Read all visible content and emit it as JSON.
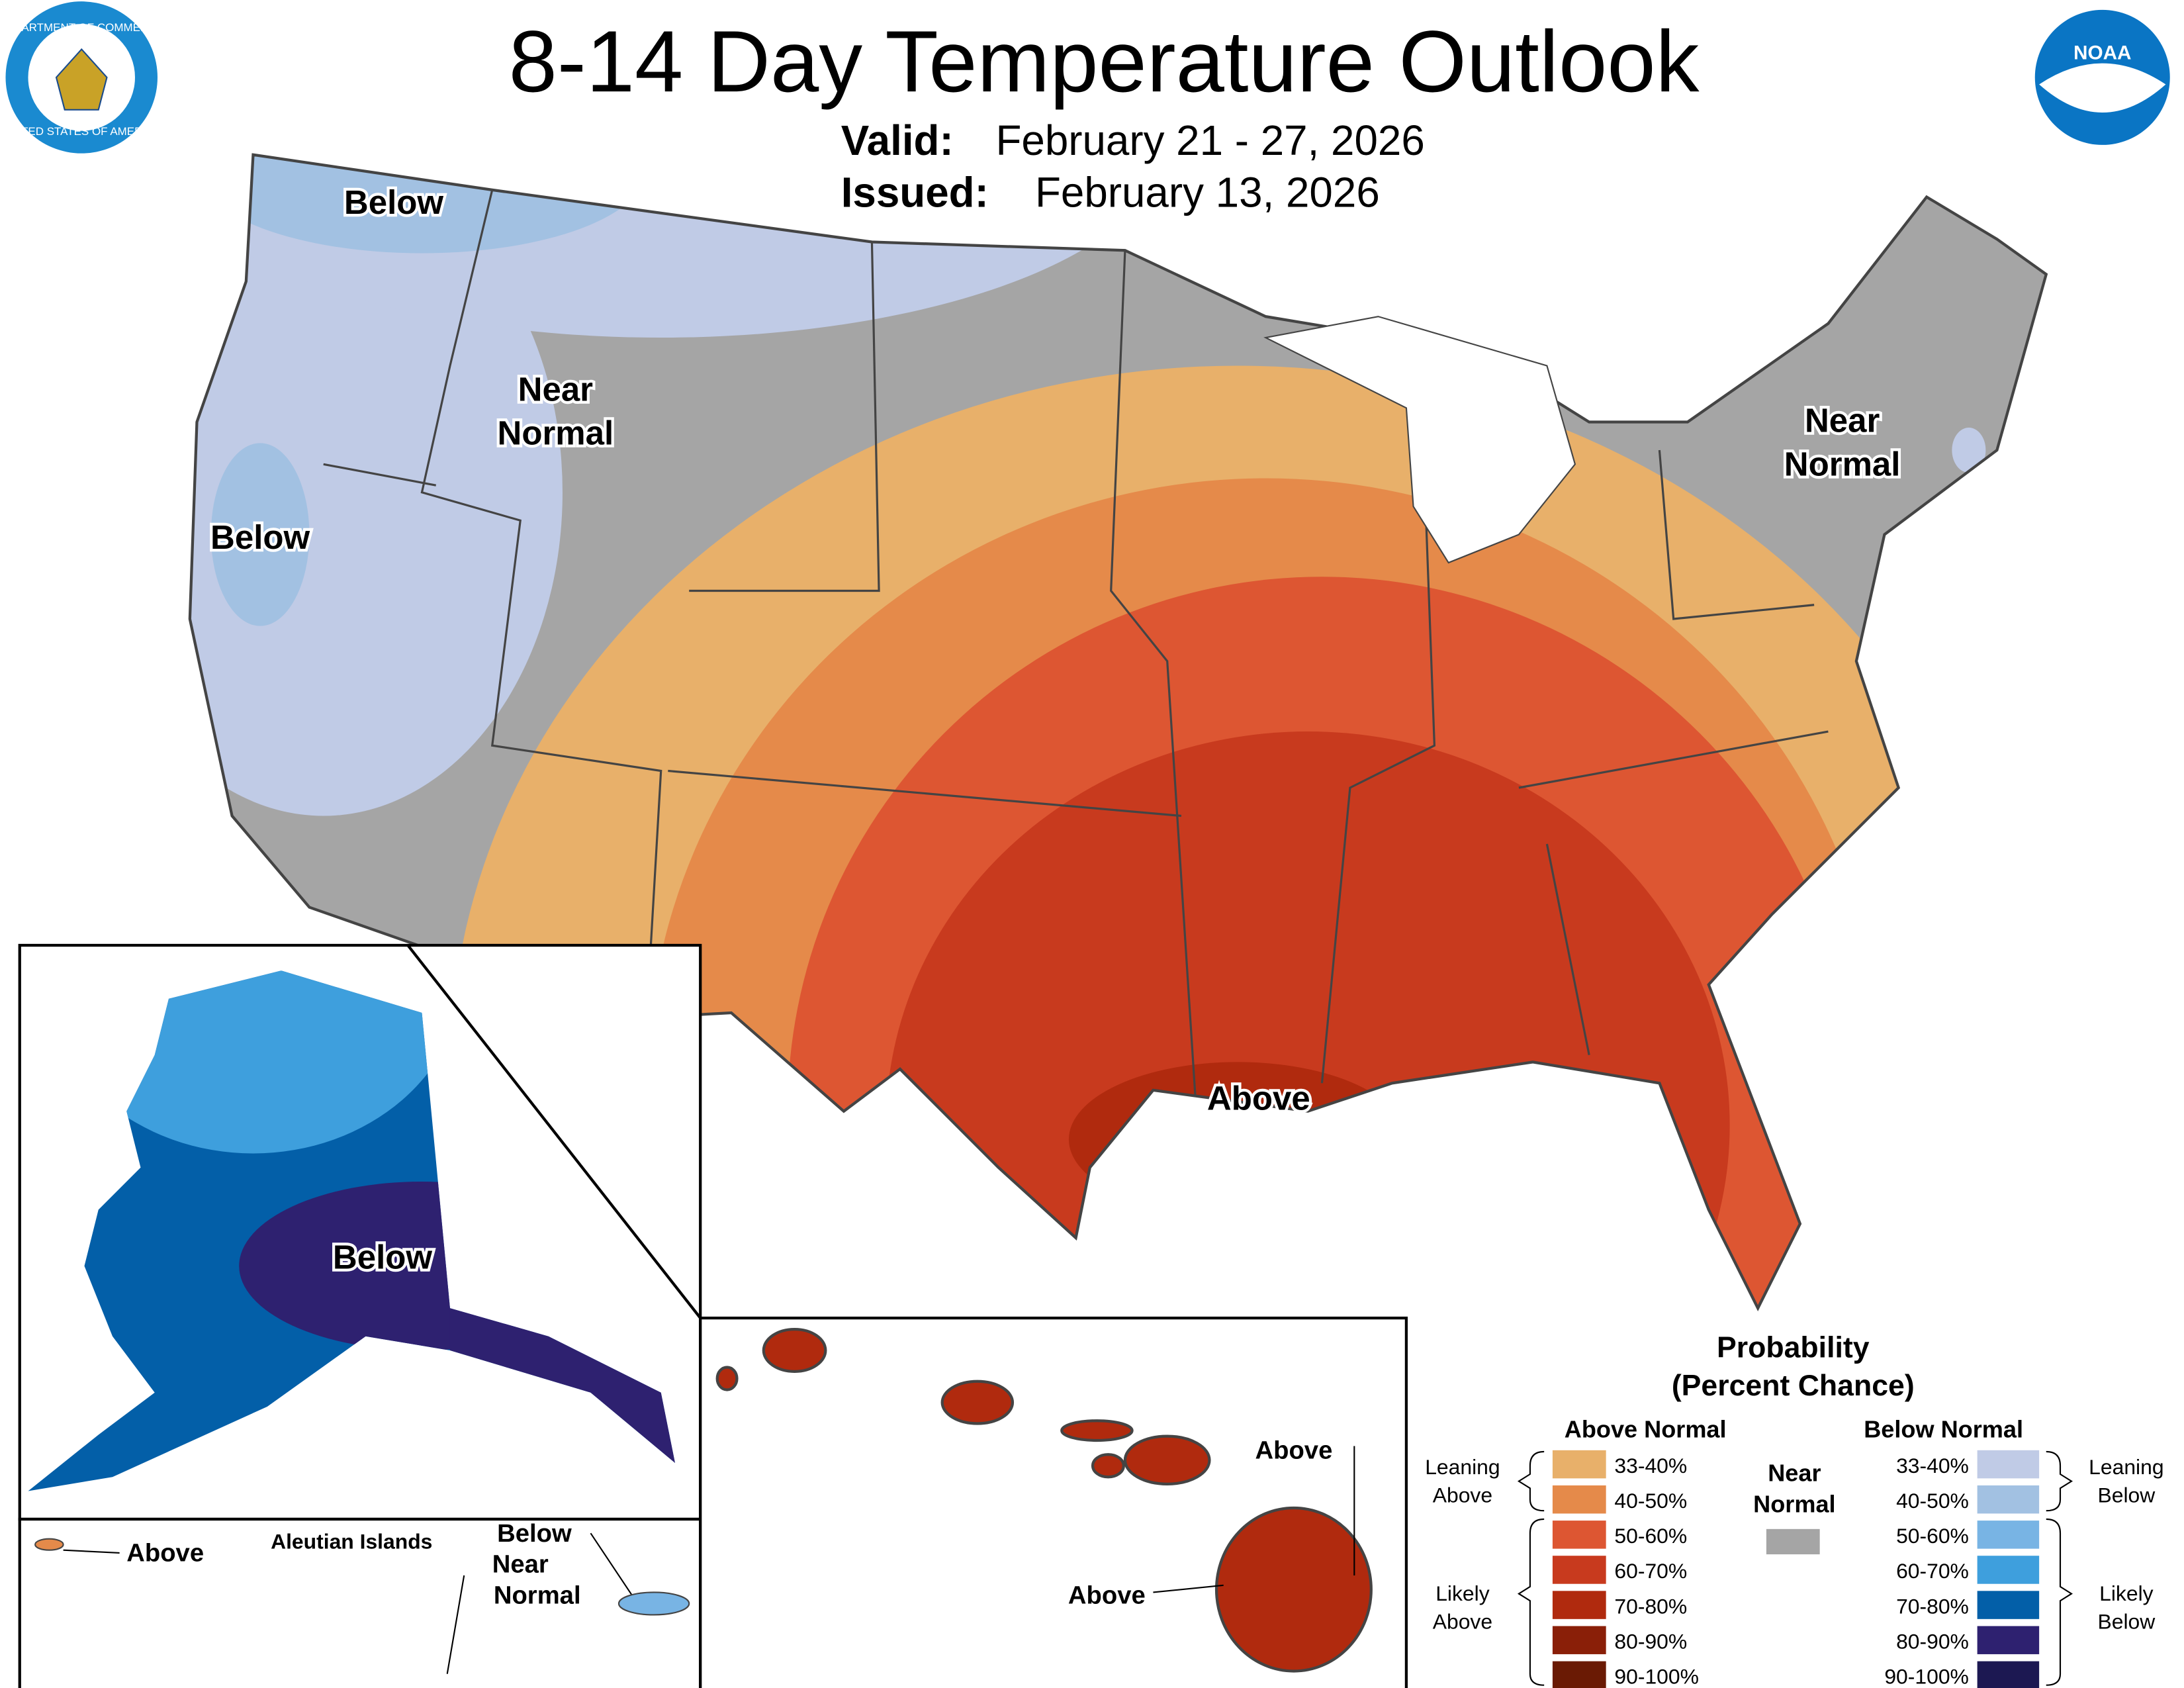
{
  "header": {
    "title": "8-14 Day Temperature Outlook",
    "valid_label": "Valid:",
    "valid_value": "February 21 - 27, 2026",
    "issued_label": "Issued:",
    "issued_value": "February 13, 2026"
  },
  "logos": {
    "commerce_top": "DEPARTMENT OF COMMERCE",
    "commerce_bottom": "UNITED STATES OF AMERICA",
    "noaa": "NOAA"
  },
  "map_labels": {
    "wa_below": "Below",
    "west_near": [
      "Near",
      "Normal"
    ],
    "ca_below": "Below",
    "ne_near": [
      "Near",
      "Normal"
    ],
    "gulf_above": "Above",
    "alaska_below": "Below",
    "aleutian_title": "Aleutian Islands",
    "aleutian_above": "Above",
    "aleutian_below_near": [
      "Below",
      "Near",
      "Normal"
    ],
    "hawaii_above_1": "Above",
    "hawaii_above_2": "Above"
  },
  "legend": {
    "title": [
      "Probability",
      "(Percent Chance)"
    ],
    "above_header": "Above Normal",
    "below_header": "Below Normal",
    "near": [
      "Near",
      "Normal"
    ],
    "near_color": "#a5a5a5",
    "above": [
      {
        "label": "33-40%",
        "color": "#e8b06a"
      },
      {
        "label": "40-50%",
        "color": "#e58a4a"
      },
      {
        "label": "50-60%",
        "color": "#dd5632"
      },
      {
        "label": "60-70%",
        "color": "#c83a1e"
      },
      {
        "label": "70-80%",
        "color": "#b02a0e"
      },
      {
        "label": "80-90%",
        "color": "#8a1f08"
      },
      {
        "label": "90-100%",
        "color": "#6a1a04"
      }
    ],
    "below": [
      {
        "label": "33-40%",
        "color": "#c0cbe6"
      },
      {
        "label": "40-50%",
        "color": "#a2c1e2"
      },
      {
        "label": "50-60%",
        "color": "#78b4e4"
      },
      {
        "label": "60-70%",
        "color": "#3e9fdd"
      },
      {
        "label": "70-80%",
        "color": "#035fa8"
      },
      {
        "label": "80-90%",
        "color": "#2e2170"
      },
      {
        "label": "90-100%",
        "color": "#1c1852"
      }
    ],
    "leaning_above": [
      "Leaning",
      "Above"
    ],
    "likely_above": [
      "Likely",
      "Above"
    ],
    "leaning_below": [
      "Leaning",
      "Below"
    ],
    "likely_below": [
      "Likely",
      "Below"
    ]
  }
}
